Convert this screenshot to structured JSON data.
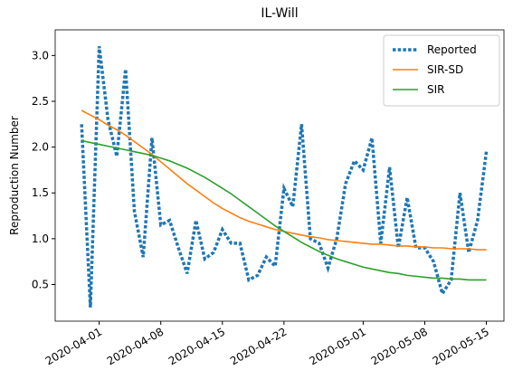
{
  "chart_data": {
    "type": "line",
    "title": "IL-Will",
    "ylabel": "Reproduction Number",
    "x": [
      "2020-03-30",
      "2020-03-31",
      "2020-04-01",
      "2020-04-02",
      "2020-04-03",
      "2020-04-04",
      "2020-04-05",
      "2020-04-06",
      "2020-04-07",
      "2020-04-08",
      "2020-04-09",
      "2020-04-10",
      "2020-04-11",
      "2020-04-12",
      "2020-04-13",
      "2020-04-14",
      "2020-04-15",
      "2020-04-16",
      "2020-04-17",
      "2020-04-18",
      "2020-04-19",
      "2020-04-20",
      "2020-04-21",
      "2020-04-22",
      "2020-04-23",
      "2020-04-24",
      "2020-04-25",
      "2020-04-26",
      "2020-04-27",
      "2020-04-28",
      "2020-04-29",
      "2020-04-30",
      "2020-05-01",
      "2020-05-02",
      "2020-05-03",
      "2020-05-04",
      "2020-05-05",
      "2020-05-06",
      "2020-05-07",
      "2020-05-08",
      "2020-05-09",
      "2020-05-10",
      "2020-05-11",
      "2020-05-12",
      "2020-05-13",
      "2020-05-14",
      "2020-05-15"
    ],
    "series": [
      {
        "name": "Reported",
        "color": "#1f77b4",
        "linestyle": "dotted",
        "values": [
          2.25,
          0.25,
          3.1,
          2.3,
          1.9,
          2.85,
          1.3,
          0.8,
          2.1,
          1.15,
          1.2,
          0.9,
          0.62,
          1.2,
          0.78,
          0.85,
          1.1,
          0.95,
          0.95,
          0.55,
          0.6,
          0.8,
          0.7,
          1.55,
          1.35,
          2.25,
          1.0,
          0.95,
          0.68,
          1.0,
          1.6,
          1.85,
          1.75,
          2.1,
          0.95,
          1.78,
          0.9,
          1.45,
          0.9,
          0.9,
          0.75,
          0.4,
          0.55,
          1.5,
          0.85,
          1.2,
          1.95
        ]
      },
      {
        "name": "SIR-SD",
        "color": "#ff7f0e",
        "linestyle": "solid",
        "values": [
          2.4,
          2.35,
          2.3,
          2.24,
          2.19,
          2.13,
          2.06,
          1.99,
          1.92,
          1.84,
          1.76,
          1.68,
          1.6,
          1.53,
          1.46,
          1.39,
          1.33,
          1.28,
          1.23,
          1.19,
          1.16,
          1.13,
          1.1,
          1.08,
          1.06,
          1.04,
          1.02,
          1.01,
          0.99,
          0.98,
          0.97,
          0.96,
          0.95,
          0.94,
          0.94,
          0.93,
          0.92,
          0.92,
          0.91,
          0.91,
          0.9,
          0.9,
          0.89,
          0.89,
          0.89,
          0.88,
          0.88
        ]
      },
      {
        "name": "SIR",
        "color": "#2ca02c",
        "linestyle": "solid",
        "values": [
          2.07,
          2.05,
          2.03,
          2.01,
          1.99,
          1.97,
          1.95,
          1.93,
          1.91,
          1.88,
          1.85,
          1.81,
          1.77,
          1.72,
          1.67,
          1.61,
          1.55,
          1.49,
          1.42,
          1.35,
          1.28,
          1.21,
          1.14,
          1.08,
          1.02,
          0.96,
          0.91,
          0.86,
          0.82,
          0.78,
          0.75,
          0.72,
          0.69,
          0.67,
          0.65,
          0.63,
          0.62,
          0.6,
          0.59,
          0.58,
          0.57,
          0.57,
          0.56,
          0.56,
          0.55,
          0.55,
          0.55
        ]
      }
    ],
    "xlim": [
      "2020-03-27",
      "2020-05-17"
    ],
    "xticks": [
      "2020-04-01",
      "2020-04-08",
      "2020-04-15",
      "2020-04-22",
      "2020-05-01",
      "2020-05-08",
      "2020-05-15"
    ],
    "ylim": [
      0.1,
      3.28
    ],
    "yticks": [
      {
        "value": 0.5,
        "label": "0.5"
      },
      {
        "value": 1,
        "label": "1.0"
      },
      {
        "value": 1.5,
        "label": "1.5"
      },
      {
        "value": 2,
        "label": "2.0"
      },
      {
        "value": 2.5,
        "label": "2.5"
      },
      {
        "value": 3,
        "label": "3.0"
      }
    ],
    "legend": "upper right"
  }
}
